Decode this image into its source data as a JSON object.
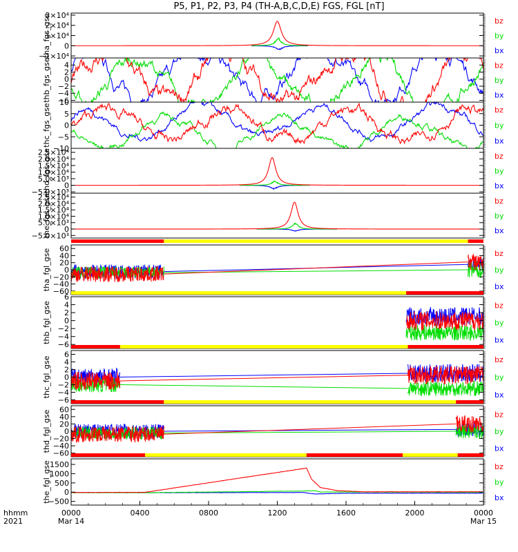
{
  "title": "P5, P1, P2, P3, P4 (TH-A,B,C,D,E) FGS, FGL [nT]",
  "colors": {
    "bx": "#0000ff",
    "by": "#00dd00",
    "bz": "#ff0000",
    "bar_red": "#ff0000",
    "bar_yellow": "#ffff00"
  },
  "x_axis": {
    "label_top": "hhmm",
    "label_bottom": "2021",
    "ticks": [
      {
        "t": 0,
        "time": "0000",
        "date": "Mar 14"
      },
      {
        "t": 4,
        "time": "0400",
        "date": ""
      },
      {
        "t": 8,
        "time": "0800",
        "date": ""
      },
      {
        "t": 12,
        "time": "1200",
        "date": ""
      },
      {
        "t": 16,
        "time": "1600",
        "date": ""
      },
      {
        "t": 20,
        "time": "2000",
        "date": ""
      },
      {
        "t": 24,
        "time": "0000",
        "date": "Mar 15"
      }
    ]
  },
  "chart_data": [
    {
      "type": "line",
      "ylabel": "tha_fgs_gse",
      "ylim": [
        -12000,
        32000
      ],
      "yticks": [
        {
          "v": 30000,
          "l": "3×10⁴"
        },
        {
          "v": 20000,
          "l": "2×10⁴"
        },
        {
          "v": 10000,
          "l": "1×10⁴"
        },
        {
          "v": 0,
          "l": "0"
        },
        {
          "v": -10000,
          "l": "−1×10⁴"
        }
      ],
      "legend": [
        "bz",
        "by",
        "bx"
      ],
      "coverage": [
        [
          0,
          24
        ]
      ],
      "series": [
        {
          "name": "bx",
          "gen": "peak",
          "center": 12.1,
          "amp": -3500,
          "width": 0.45,
          "extent": [
            10.5,
            13.8
          ]
        },
        {
          "name": "by",
          "gen": "peak",
          "center": 12.05,
          "amp": 7000,
          "width": 0.35,
          "extent": [
            10.5,
            13.8
          ]
        },
        {
          "name": "bz",
          "gen": "peak",
          "center": 12.0,
          "amp": 24000,
          "width": 0.5,
          "extent": [
            0,
            24
          ]
        }
      ]
    },
    {
      "type": "line",
      "ylabel": "thb_fgs_gse",
      "ylim": [
        -6.5,
        6
      ],
      "yticks": [
        {
          "v": 4,
          "l": "4"
        },
        {
          "v": 2,
          "l": "2"
        },
        {
          "v": 0,
          "l": "0"
        },
        {
          "v": -2,
          "l": "−2"
        },
        {
          "v": -4,
          "l": "−4"
        },
        {
          "v": -6,
          "l": "−6"
        }
      ],
      "legend": [
        "bz",
        "by",
        "bx"
      ],
      "coverage": [
        [
          0,
          24
        ]
      ],
      "series": [
        {
          "name": "bx",
          "gen": "noise",
          "level": 1.5,
          "spread": 2.5
        },
        {
          "name": "by",
          "gen": "noise",
          "level": -1.5,
          "spread": 2.5
        },
        {
          "name": "bz",
          "gen": "noise",
          "level": 0,
          "spread": 3
        }
      ]
    },
    {
      "type": "line",
      "ylabel": "thc_fgs_gse",
      "ylim": [
        -10,
        10
      ],
      "yticks": [
        {
          "v": 10,
          "l": "10"
        },
        {
          "v": 5,
          "l": "5"
        },
        {
          "v": 0,
          "l": "0"
        },
        {
          "v": -5,
          "l": "−5"
        },
        {
          "v": -10,
          "l": "−10"
        }
      ],
      "legend": [
        "bz",
        "by",
        "bx"
      ],
      "coverage": [
        [
          0,
          24
        ]
      ],
      "series": [
        {
          "name": "bx",
          "gen": "noise",
          "level": 1.5,
          "spread": 2
        },
        {
          "name": "by",
          "gen": "noise",
          "level": -3,
          "spread": 2
        },
        {
          "name": "bz",
          "gen": "noise",
          "level": 0,
          "spread": 3
        }
      ]
    },
    {
      "type": "line",
      "ylabel": "thd_fgs_gse",
      "ylim": [
        -6000,
        28000
      ],
      "yticks": [
        {
          "v": 25000,
          "l": "2.5×10⁴"
        },
        {
          "v": 20000,
          "l": "2.0×10⁴"
        },
        {
          "v": 15000,
          "l": "1.5×10⁴"
        },
        {
          "v": 10000,
          "l": "1.0×10⁴"
        },
        {
          "v": 5000,
          "l": "5.0×10³"
        },
        {
          "v": 0,
          "l": "0"
        },
        {
          "v": -5000,
          "l": "−5.0×10³"
        }
      ],
      "legend": [
        "bz",
        "by",
        "bx"
      ],
      "coverage": [
        [
          0,
          24
        ]
      ],
      "series": [
        {
          "name": "bx",
          "gen": "peak",
          "center": 11.8,
          "amp": -2500,
          "width": 0.45,
          "extent": [
            9.8,
            13.9
          ]
        },
        {
          "name": "by",
          "gen": "peak",
          "center": 11.85,
          "amp": 3000,
          "width": 0.35,
          "extent": [
            9.8,
            13.9
          ]
        },
        {
          "name": "bz",
          "gen": "peak",
          "center": 11.7,
          "amp": 21000,
          "width": 0.45,
          "extent": [
            0,
            24
          ]
        }
      ]
    },
    {
      "type": "line",
      "ylabel": "the_fgs_gse",
      "ylim": [
        -7000,
        28000
      ],
      "yticks": [
        {
          "v": 25000,
          "l": "2.5×10⁴"
        },
        {
          "v": 20000,
          "l": "2.0×10⁴"
        },
        {
          "v": 15000,
          "l": "1.5×10⁴"
        },
        {
          "v": 10000,
          "l": "1.0×10⁴"
        },
        {
          "v": 5000,
          "l": "5.0×10³"
        },
        {
          "v": 0,
          "l": "0"
        },
        {
          "v": -5000,
          "l": "−5.0×10³"
        }
      ],
      "legend": [
        "bz",
        "by",
        "bx"
      ],
      "coverage": [
        [
          0,
          24
        ]
      ],
      "series": [
        {
          "name": "bx",
          "gen": "peak",
          "center": 13.05,
          "amp": -1500,
          "width": 0.4,
          "extent": [
            10.8,
            15.5
          ]
        },
        {
          "name": "by",
          "gen": "peak",
          "center": 13.05,
          "amp": 4500,
          "width": 0.35,
          "extent": [
            10.8,
            15.5
          ]
        },
        {
          "name": "bz",
          "gen": "peak",
          "center": 13.0,
          "amp": 21000,
          "width": 0.45,
          "extent": [
            0,
            24
          ]
        }
      ]
    },
    {
      "type": "line",
      "ylabel": "tha_fgl_gse",
      "ylim": [
        -70,
        70
      ],
      "yticks": [
        {
          "v": 60,
          "l": "60"
        },
        {
          "v": 40,
          "l": "40"
        },
        {
          "v": 20,
          "l": "20"
        },
        {
          "v": 0,
          "l": "0"
        },
        {
          "v": -20,
          "l": "−20"
        },
        {
          "v": -40,
          "l": "−40"
        },
        {
          "v": -60,
          "l": "−60"
        }
      ],
      "legend": [
        "bz",
        "by",
        "bx"
      ],
      "bar": [
        {
          "from": 0,
          "to": 5.4,
          "color": "red"
        },
        {
          "from": 5.4,
          "to": 23.1,
          "color": "yellow"
        },
        {
          "from": 23.1,
          "to": 24,
          "color": "red"
        }
      ],
      "coverage": [
        [
          0,
          5.4
        ],
        [
          23.1,
          24
        ]
      ],
      "series": [
        {
          "name": "bx",
          "gen": "burst",
          "segments": [
            {
              "from": 0,
              "to": 5.4,
              "level": -5,
              "spread": 25
            },
            {
              "from": 23.1,
              "to": 24,
              "level": 15,
              "spread": 25
            }
          ],
          "link": true
        },
        {
          "name": "by",
          "gen": "burst",
          "segments": [
            {
              "from": 0,
              "to": 5.4,
              "level": -8,
              "spread": 22
            },
            {
              "from": 23.1,
              "to": 24,
              "level": 0,
              "spread": 30
            }
          ],
          "link": true
        },
        {
          "name": "bz",
          "gen": "burst",
          "segments": [
            {
              "from": 0,
              "to": 5.4,
              "level": -12,
              "spread": 28
            },
            {
              "from": 23.1,
              "to": 24,
              "level": 22,
              "spread": 30
            }
          ],
          "link": true
        }
      ]
    },
    {
      "type": "line",
      "ylabel": "thb_fgl_gse",
      "ylim": [
        -7,
        6
      ],
      "yticks": [
        {
          "v": 6,
          "l": "6"
        },
        {
          "v": 4,
          "l": "4"
        },
        {
          "v": 2,
          "l": "2"
        },
        {
          "v": 0,
          "l": "0"
        },
        {
          "v": -2,
          "l": "−2"
        },
        {
          "v": -4,
          "l": "−4"
        },
        {
          "v": -6,
          "l": "−6"
        }
      ],
      "legend": [
        "bz",
        "by",
        "bx"
      ],
      "bar": [
        {
          "from": 0,
          "to": 19.5,
          "color": "yellow"
        },
        {
          "from": 19.5,
          "to": 24,
          "color": "red"
        }
      ],
      "coverage": [
        [
          19.5,
          24
        ]
      ],
      "series": [
        {
          "name": "bx",
          "gen": "burst",
          "segments": [
            {
              "from": 19.5,
              "to": 24,
              "level": 1,
              "spread": 3
            }
          ],
          "link": false
        },
        {
          "name": "by",
          "gen": "burst",
          "segments": [
            {
              "from": 19.5,
              "to": 24,
              "level": -3,
              "spread": 2.5
            }
          ],
          "link": false
        },
        {
          "name": "bz",
          "gen": "burst",
          "segments": [
            {
              "from": 19.5,
              "to": 24,
              "level": 0,
              "spread": 3
            }
          ],
          "link": false
        }
      ]
    },
    {
      "type": "line",
      "ylabel": "thc_fgl_gse",
      "ylim": [
        -7,
        7
      ],
      "yticks": [
        {
          "v": 6,
          "l": "6"
        },
        {
          "v": 4,
          "l": "4"
        },
        {
          "v": 2,
          "l": "2"
        },
        {
          "v": 0,
          "l": "0"
        },
        {
          "v": -2,
          "l": "−2"
        },
        {
          "v": -4,
          "l": "−4"
        },
        {
          "v": -6,
          "l": "−6"
        }
      ],
      "legend": [
        "bz",
        "by",
        "bx"
      ],
      "bar": [
        {
          "from": 0,
          "to": 2.85,
          "color": "red"
        },
        {
          "from": 2.85,
          "to": 19.6,
          "color": "yellow"
        },
        {
          "from": 19.6,
          "to": 24,
          "color": "red"
        }
      ],
      "coverage": [
        [
          0,
          2.85
        ],
        [
          19.6,
          24
        ]
      ],
      "series": [
        {
          "name": "bx",
          "gen": "burst",
          "segments": [
            {
              "from": 0,
              "to": 2.85,
              "level": 0,
              "spread": 3
            },
            {
              "from": 19.6,
              "to": 24,
              "level": 1,
              "spread": 3
            }
          ],
          "link": true
        },
        {
          "name": "by",
          "gen": "burst",
          "segments": [
            {
              "from": 0,
              "to": 2.85,
              "level": -2,
              "spread": 2.5
            },
            {
              "from": 19.6,
              "to": 24,
              "level": -3,
              "spread": 2.5
            }
          ],
          "link": true
        },
        {
          "name": "bz",
          "gen": "burst",
          "segments": [
            {
              "from": 0,
              "to": 2.85,
              "level": -1,
              "spread": 3
            },
            {
              "from": 19.6,
              "to": 24,
              "level": 0.5,
              "spread": 3
            }
          ],
          "link": true
        }
      ]
    },
    {
      "type": "line",
      "ylabel": "thd_fgl_gse",
      "ylim": [
        -70,
        70
      ],
      "yticks": [
        {
          "v": 60,
          "l": "60"
        },
        {
          "v": 40,
          "l": "40"
        },
        {
          "v": 20,
          "l": "20"
        },
        {
          "v": 0,
          "l": "0"
        },
        {
          "v": -20,
          "l": "−20"
        },
        {
          "v": -40,
          "l": "−40"
        },
        {
          "v": -60,
          "l": "−60"
        }
      ],
      "legend": [
        "bz",
        "by",
        "bx"
      ],
      "bar": [
        {
          "from": 0,
          "to": 5.4,
          "color": "red"
        },
        {
          "from": 5.4,
          "to": 22.4,
          "color": "yellow"
        },
        {
          "from": 22.4,
          "to": 24,
          "color": "red"
        }
      ],
      "coverage": [
        [
          0,
          5.4
        ],
        [
          22.4,
          24
        ]
      ],
      "series": [
        {
          "name": "bx",
          "gen": "burst",
          "segments": [
            {
              "from": 0,
              "to": 5.4,
              "level": 0,
              "spread": 25
            },
            {
              "from": 22.4,
              "to": 24,
              "level": 5,
              "spread": 25
            }
          ],
          "link": true
        },
        {
          "name": "by",
          "gen": "burst",
          "segments": [
            {
              "from": 0,
              "to": 5.4,
              "level": -5,
              "spread": 22
            },
            {
              "from": 22.4,
              "to": 24,
              "level": 0,
              "spread": 25
            }
          ],
          "link": true
        },
        {
          "name": "bz",
          "gen": "burst",
          "segments": [
            {
              "from": 0,
              "to": 5.4,
              "level": -8,
              "spread": 28
            },
            {
              "from": 22.4,
              "to": 24,
              "level": 20,
              "spread": 30
            }
          ],
          "link": true
        }
      ]
    },
    {
      "type": "line",
      "ylabel": "the_fgl_gse",
      "ylim": [
        -700,
        1800
      ],
      "yticks": [
        {
          "v": 1500,
          "l": "1500"
        },
        {
          "v": 1000,
          "l": "1000"
        },
        {
          "v": 500,
          "l": "500"
        },
        {
          "v": 0,
          "l": "0"
        },
        {
          "v": -500,
          "l": "−500"
        }
      ],
      "legend": [
        "bz",
        "by",
        "bx"
      ],
      "bar": [
        {
          "from": 0,
          "to": 4.3,
          "color": "red"
        },
        {
          "from": 4.3,
          "to": 13.7,
          "color": "yellow"
        },
        {
          "from": 13.7,
          "to": 19.3,
          "color": "red"
        },
        {
          "from": 19.3,
          "to": 22.5,
          "color": "yellow"
        },
        {
          "from": 22.5,
          "to": 24,
          "color": "red"
        }
      ],
      "coverage": [
        [
          0,
          24
        ]
      ],
      "series": [
        {
          "name": "bx",
          "gen": "points",
          "points": [
            [
              0,
              -20
            ],
            [
              4.3,
              -30
            ],
            [
              13.5,
              -20
            ],
            [
              14.2,
              -100
            ],
            [
              16,
              -60
            ],
            [
              24,
              -60
            ]
          ],
          "noise": 10
        },
        {
          "name": "by",
          "gen": "points",
          "points": [
            [
              0,
              -30
            ],
            [
              4.3,
              -30
            ],
            [
              13.5,
              60
            ],
            [
              14.2,
              80
            ],
            [
              14.5,
              10
            ],
            [
              24,
              -10
            ]
          ],
          "noise": 15
        },
        {
          "name": "bz",
          "gen": "points",
          "points": [
            [
              0,
              -20
            ],
            [
              4.3,
              -10
            ],
            [
              13.7,
              1300
            ],
            [
              14.0,
              700
            ],
            [
              14.5,
              250
            ],
            [
              15.5,
              80
            ],
            [
              17,
              20
            ],
            [
              24,
              20
            ]
          ],
          "noise": 15
        }
      ]
    }
  ]
}
